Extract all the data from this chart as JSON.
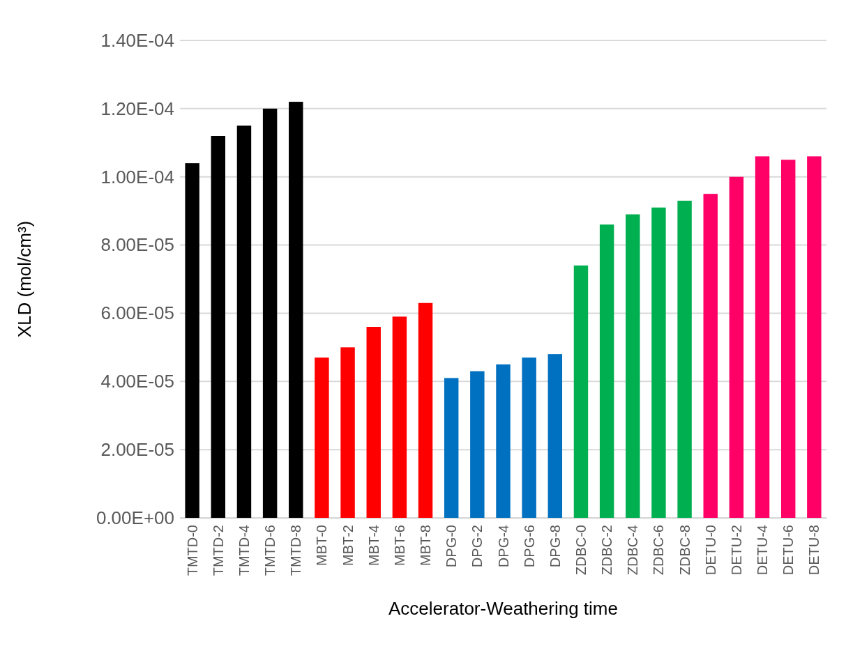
{
  "chart_data": {
    "type": "bar",
    "xlabel": "Accelerator-Weathering time",
    "ylabel": "XLD (mol/cm³)",
    "categories": [
      "TMTD-0",
      "TMTD-2",
      "TMTD-4",
      "TMTD-6",
      "TMTD-8",
      "MBT-0",
      "MBT-2",
      "MBT-4",
      "MBT-6",
      "MBT-8",
      "DPG-0",
      "DPG-2",
      "DPG-4",
      "DPG-6",
      "DPG-8",
      "ZDBC-0",
      "ZDBC-2",
      "ZDBC-4",
      "ZDBC-6",
      "ZDBC-8",
      "DETU-0",
      "DETU-2",
      "DETU-4",
      "DETU-6",
      "DETU-8"
    ],
    "values": [
      0.000104,
      0.000112,
      0.000115,
      0.00012,
      0.000122,
      4.7e-05,
      5e-05,
      5.6e-05,
      5.9e-05,
      6.3e-05,
      4.1e-05,
      4.3e-05,
      4.5e-05,
      4.7e-05,
      4.8e-05,
      7.4e-05,
      8.6e-05,
      8.9e-05,
      9.1e-05,
      9.3e-05,
      9.5e-05,
      0.0001,
      0.000106,
      0.000105,
      0.000106
    ],
    "colors": [
      "#000000",
      "#000000",
      "#000000",
      "#000000",
      "#000000",
      "#ff0000",
      "#ff0000",
      "#ff0000",
      "#ff0000",
      "#ff0000",
      "#0070c0",
      "#0070c0",
      "#0070c0",
      "#0070c0",
      "#0070c0",
      "#00b050",
      "#00b050",
      "#00b050",
      "#00b050",
      "#00b050",
      "#ff0066",
      "#ff0066",
      "#ff0066",
      "#ff0066",
      "#ff0066"
    ],
    "ylim": [
      0,
      0.00014
    ],
    "yticks": [
      {
        "value": 0,
        "label": "0.00E+00"
      },
      {
        "value": 2e-05,
        "label": "2.00E-05"
      },
      {
        "value": 4e-05,
        "label": "4.00E-05"
      },
      {
        "value": 6e-05,
        "label": "6.00E-05"
      },
      {
        "value": 8e-05,
        "label": "8.00E-05"
      },
      {
        "value": 0.0001,
        "label": "1.00E-04"
      },
      {
        "value": 0.00012,
        "label": "1.20E-04"
      },
      {
        "value": 0.00014,
        "label": "1.40E-04"
      }
    ],
    "grid": "y"
  }
}
